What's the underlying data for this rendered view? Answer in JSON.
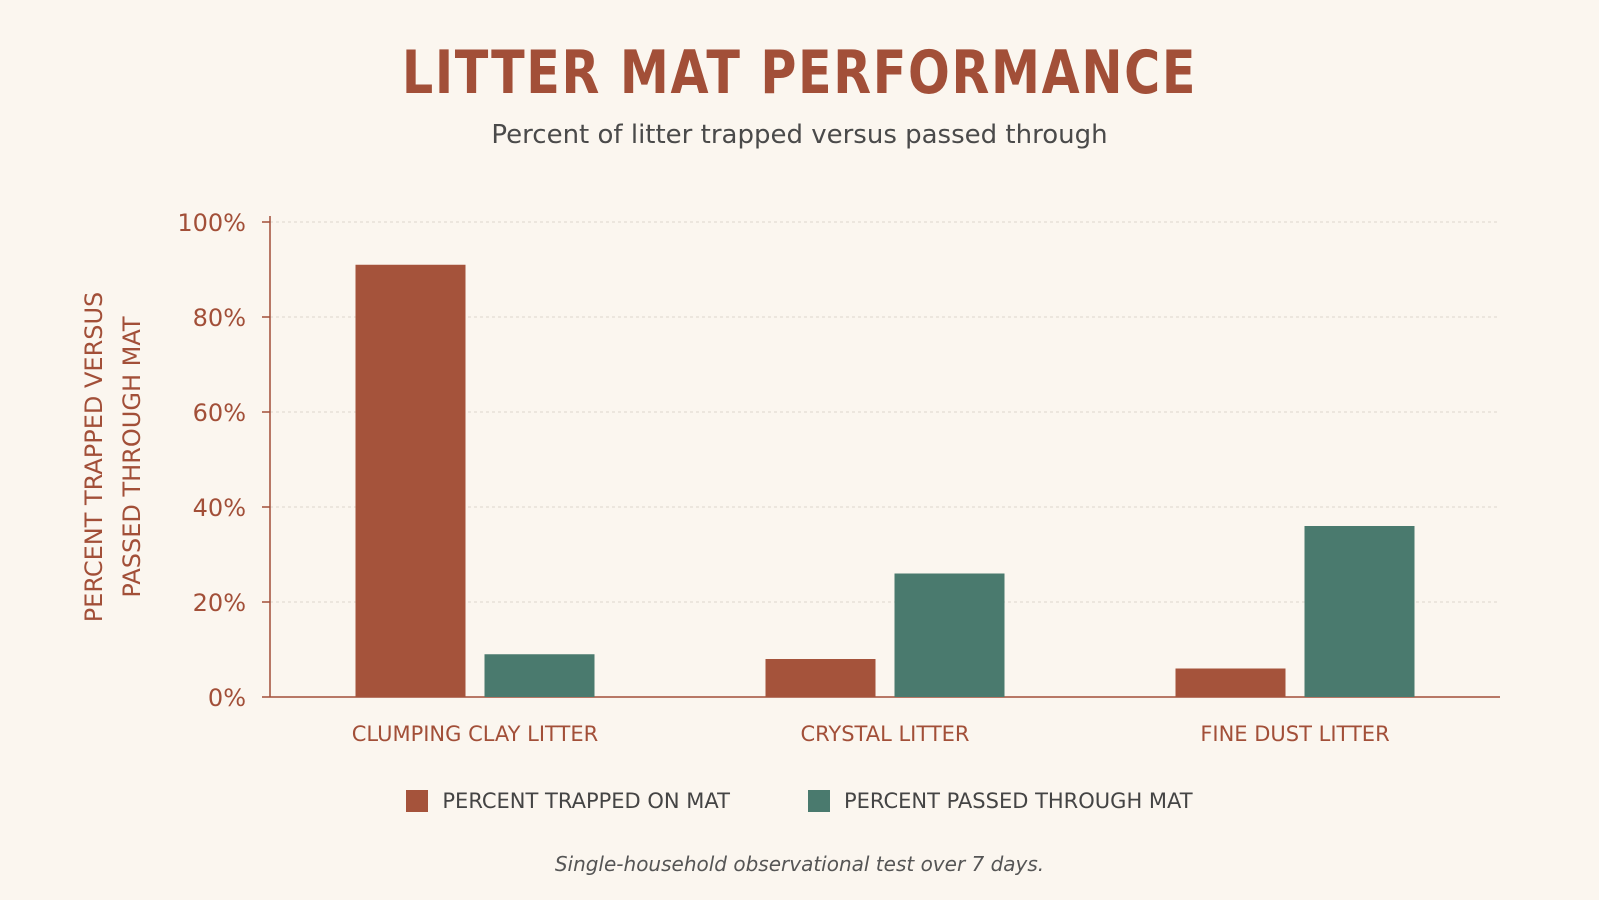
{
  "chart_data": {
    "type": "bar",
    "title": "LITTER MAT PERFORMANCE",
    "subtitle": "Percent of litter trapped versus passed through",
    "ylabel": "PERCENT TRAPPED VERSUS PASSED THROUGH MAT",
    "ylabel_lines": [
      "PERCENT TRAPPED VERSUS",
      "PASSED THROUGH MAT"
    ],
    "xlabel": "",
    "categories": [
      "CLUMPING CLAY LITTER",
      "CRYSTAL LITTER",
      "FINE DUST LITTER"
    ],
    "series": [
      {
        "name": "PERCENT TRAPPED ON MAT",
        "color": "#a5533b",
        "values": [
          91,
          8,
          6
        ]
      },
      {
        "name": "PERCENT PASSED THROUGH MAT",
        "color": "#4a7a6e",
        "values": [
          9,
          26,
          36
        ]
      }
    ],
    "ylim": [
      0,
      100
    ],
    "yticks": [
      0,
      20,
      40,
      60,
      80,
      100
    ],
    "ytick_labels": [
      "0%",
      "20%",
      "40%",
      "60%",
      "80%",
      "100%"
    ],
    "grid": true,
    "legend_position": "bottom",
    "footnote": "Single-household observational test over 7 days."
  }
}
